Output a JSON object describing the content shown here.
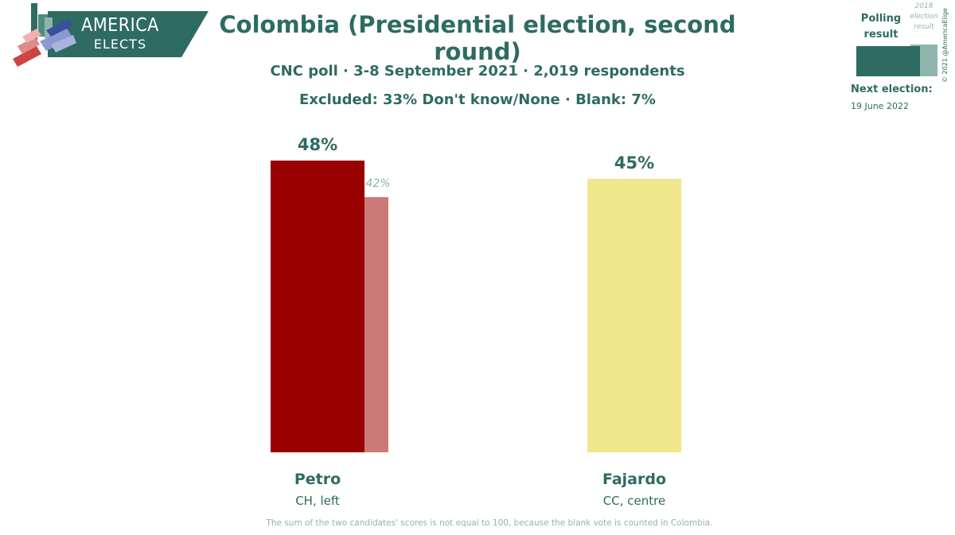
{
  "brand": {
    "line1": "AMERICA",
    "line2": "ELECTS",
    "primary_color": "#2e6b62",
    "secondary_color": "#8fb4ae"
  },
  "header": {
    "title": "Colombia (Presidential election, second round)",
    "subtitle1": "CNC poll · 3-8 September 2021 · 2,019 respondents",
    "subtitle2": "Excluded: 33% Don't know/None · Blank: 7%"
  },
  "legend": {
    "polling_label": "Polling result",
    "previous_label": "2018 election result",
    "copyright": "© 2021 @AmericaElige",
    "next_election_label": "Next election:",
    "next_election_date": "19 June 2022"
  },
  "chart_data": {
    "type": "bar",
    "title": "Colombia (Presidential election, second round)",
    "ylim": [
      0,
      50
    ],
    "categories": [
      "Petro",
      "Fajardo"
    ],
    "series": [
      {
        "name": "Polling result",
        "values": [
          48,
          45
        ]
      },
      {
        "name": "2018 election result",
        "values": [
          42,
          null
        ]
      }
    ],
    "value_labels": [
      "48%",
      "45%"
    ],
    "previous_labels": [
      "42%",
      ""
    ],
    "parties": [
      "CH, left",
      "CC, centre"
    ],
    "colors": [
      "#990000",
      "#f0e68c"
    ],
    "previous_colors": [
      "#cc7a78",
      ""
    ]
  },
  "footnote": "The sum of the two candidates' scores is not equal to 100, because the blank vote is counted in Colombia."
}
